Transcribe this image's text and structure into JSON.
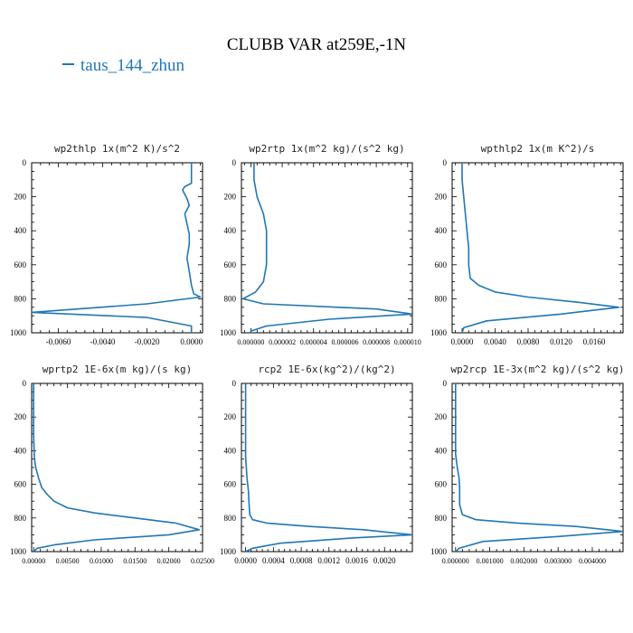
{
  "title": "CLUBB VAR at259E,-1N",
  "legend": {
    "label": "taus_144_zhun",
    "color": "#1f77b4"
  },
  "line_color": "#1f77b4",
  "chart_data": [
    {
      "type": "line",
      "title": "wp2thlp   1x(m^2 K)/s^2",
      "xlim": [
        -0.0072,
        0.0005
      ],
      "ylim": [
        1000,
        0
      ],
      "xticks": [
        "-0.0060",
        "-0.0040",
        "-0.0020",
        "0.0000"
      ],
      "xtick_values": [
        -0.006,
        -0.004,
        -0.002,
        0.0
      ],
      "yticks": [
        "0",
        "200",
        "400",
        "600",
        "800",
        "1000"
      ],
      "yticks_values": [
        0,
        200,
        400,
        600,
        800,
        1000
      ],
      "series": [
        {
          "x": [
            0.0,
            0.0,
            -0.0003,
            -0.0004,
            -0.0002,
            -0.0001,
            -0.0003,
            -0.0002,
            -0.0001,
            -0.0001,
            -0.0002,
            -0.0001,
            0.0,
            0.0001,
            0.0004,
            -0.002,
            -0.0072,
            -0.002,
            0.0,
            0.0,
            0.0
          ],
          "y": [
            0,
            120,
            140,
            160,
            210,
            250,
            300,
            360,
            420,
            480,
            560,
            640,
            720,
            770,
            790,
            830,
            880,
            910,
            960,
            990,
            1000
          ]
        }
      ]
    },
    {
      "type": "line",
      "title": "wp2rtp  1x(m^2 kg)/(s^2 kg)",
      "xlim": [
        -6e-07,
        1.03e-05
      ],
      "ylim": [
        1000,
        0
      ],
      "xticks": [
        "0.000000",
        "0.000002",
        "0.000004",
        "0.000006",
        "0.000008",
        "0.000010"
      ],
      "xtick_values": [
        0.0,
        2e-06,
        4e-06,
        6e-06,
        8e-06,
        1e-05
      ],
      "yticks": [
        "0",
        "200",
        "400",
        "600",
        "800",
        "1000"
      ],
      "yticks_values": [
        0,
        200,
        400,
        600,
        800,
        1000
      ],
      "series": [
        {
          "x": [
            2e-07,
            2e-07,
            3e-07,
            4e-07,
            8e-07,
            1e-06,
            1e-06,
            1e-06,
            8e-07,
            3e-07,
            -5e-07,
            8e-07,
            8e-06,
            1.03e-05,
            5e-06,
            1e-06,
            0.0,
            0.0
          ],
          "y": [
            0,
            100,
            150,
            200,
            300,
            400,
            500,
            600,
            700,
            760,
            800,
            830,
            860,
            890,
            920,
            960,
            990,
            1000
          ]
        }
      ]
    },
    {
      "type": "line",
      "title": "wpthlp2   1x(m K^2)/s",
      "xlim": [
        -0.0012,
        0.0195
      ],
      "ylim": [
        1000,
        0
      ],
      "xticks": [
        "0.0000",
        "0.0040",
        "0.0080",
        "0.0120",
        "0.0160"
      ],
      "xtick_values": [
        0.0,
        0.004,
        0.008,
        0.012,
        0.016
      ],
      "yticks": [
        "0",
        "200",
        "400",
        "600",
        "800",
        "1000"
      ],
      "yticks_values": [
        0,
        200,
        400,
        600,
        800,
        1000
      ],
      "series": [
        {
          "x": [
            0.0,
            0.0,
            0.0002,
            0.0004,
            0.0006,
            0.0008,
            0.0008,
            0.001,
            0.002,
            0.004,
            0.008,
            0.014,
            0.019,
            0.012,
            0.003,
            0.0002,
            0.0
          ],
          "y": [
            0,
            100,
            200,
            300,
            400,
            500,
            600,
            680,
            720,
            760,
            790,
            820,
            850,
            890,
            930,
            970,
            1000
          ]
        }
      ]
    },
    {
      "type": "line",
      "title": "wprtp2  1E-6x(m kg)/(s kg)",
      "xlim": [
        -0.0003,
        0.025
      ],
      "ylim": [
        1000,
        0
      ],
      "xticks": [
        "0.00000",
        "0.00500",
        "0.01000",
        "0.01500",
        "0.02000",
        "0.02500"
      ],
      "xtick_values": [
        0.0,
        0.005,
        0.01,
        0.015,
        0.02,
        0.025
      ],
      "yticks": [
        "0",
        "200",
        "400",
        "600",
        "800",
        "1000"
      ],
      "yticks_values": [
        0,
        200,
        400,
        600,
        800,
        1000
      ],
      "series": [
        {
          "x": [
            0.0,
            0.0,
            0.0001,
            0.0003,
            0.0007,
            0.0012,
            0.002,
            0.003,
            0.005,
            0.009,
            0.015,
            0.021,
            0.0245,
            0.02,
            0.009,
            0.003,
            0.0005,
            0.0
          ],
          "y": [
            0,
            300,
            440,
            500,
            560,
            620,
            660,
            700,
            740,
            770,
            800,
            830,
            870,
            900,
            930,
            960,
            980,
            1000
          ]
        }
      ]
    },
    {
      "type": "line",
      "title": "rcp2  1E-6x(kg^2)/(kg^2)",
      "xlim": [
        -6e-05,
        0.0024
      ],
      "ylim": [
        1000,
        0
      ],
      "xticks": [
        "0.0000",
        "0.0004",
        "0.0008",
        "0.0012",
        "0.0016",
        "0.0020"
      ],
      "xtick_values": [
        0.0,
        0.0004,
        0.0008,
        0.0012,
        0.0016,
        0.002
      ],
      "yticks": [
        "0",
        "200",
        "400",
        "600",
        "800",
        "1000"
      ],
      "yticks_values": [
        0,
        200,
        400,
        600,
        800,
        1000
      ],
      "series": [
        {
          "x": [
            0.0,
            0.0,
            1e-05,
            2e-05,
            4e-05,
            5e-05,
            6e-05,
            0.0001,
            0.0003,
            0.0009,
            0.0017,
            0.0024,
            0.0015,
            0.0005,
            0.0001,
            0.0
          ],
          "y": [
            0,
            440,
            500,
            560,
            640,
            720,
            780,
            810,
            830,
            850,
            870,
            900,
            920,
            950,
            980,
            1000
          ]
        }
      ]
    },
    {
      "type": "line",
      "title": "wp2rcp  1E-3x(m^2 kg)/(s^2 kg)",
      "xlim": [
        -0.0001,
        0.0049
      ],
      "ylim": [
        1000,
        0
      ],
      "xticks": [
        "0.000000",
        "0.001000",
        "0.002000",
        "0.003000",
        "0.004000"
      ],
      "xtick_values": [
        0.0,
        0.001,
        0.002,
        0.003,
        0.004
      ],
      "yticks": [
        "0",
        "200",
        "400",
        "600",
        "800",
        "1000"
      ],
      "yticks_values": [
        0,
        200,
        400,
        600,
        800,
        1000
      ],
      "series": [
        {
          "x": [
            0.0,
            0.0,
            5e-05,
            0.0001,
            0.00012,
            0.00012,
            0.0002,
            0.0006,
            0.0018,
            0.0035,
            0.0049,
            0.003,
            0.0008,
            0.0001,
            0.0
          ],
          "y": [
            0,
            420,
            500,
            560,
            620,
            720,
            780,
            810,
            830,
            850,
            880,
            910,
            940,
            980,
            1000
          ]
        }
      ]
    }
  ]
}
